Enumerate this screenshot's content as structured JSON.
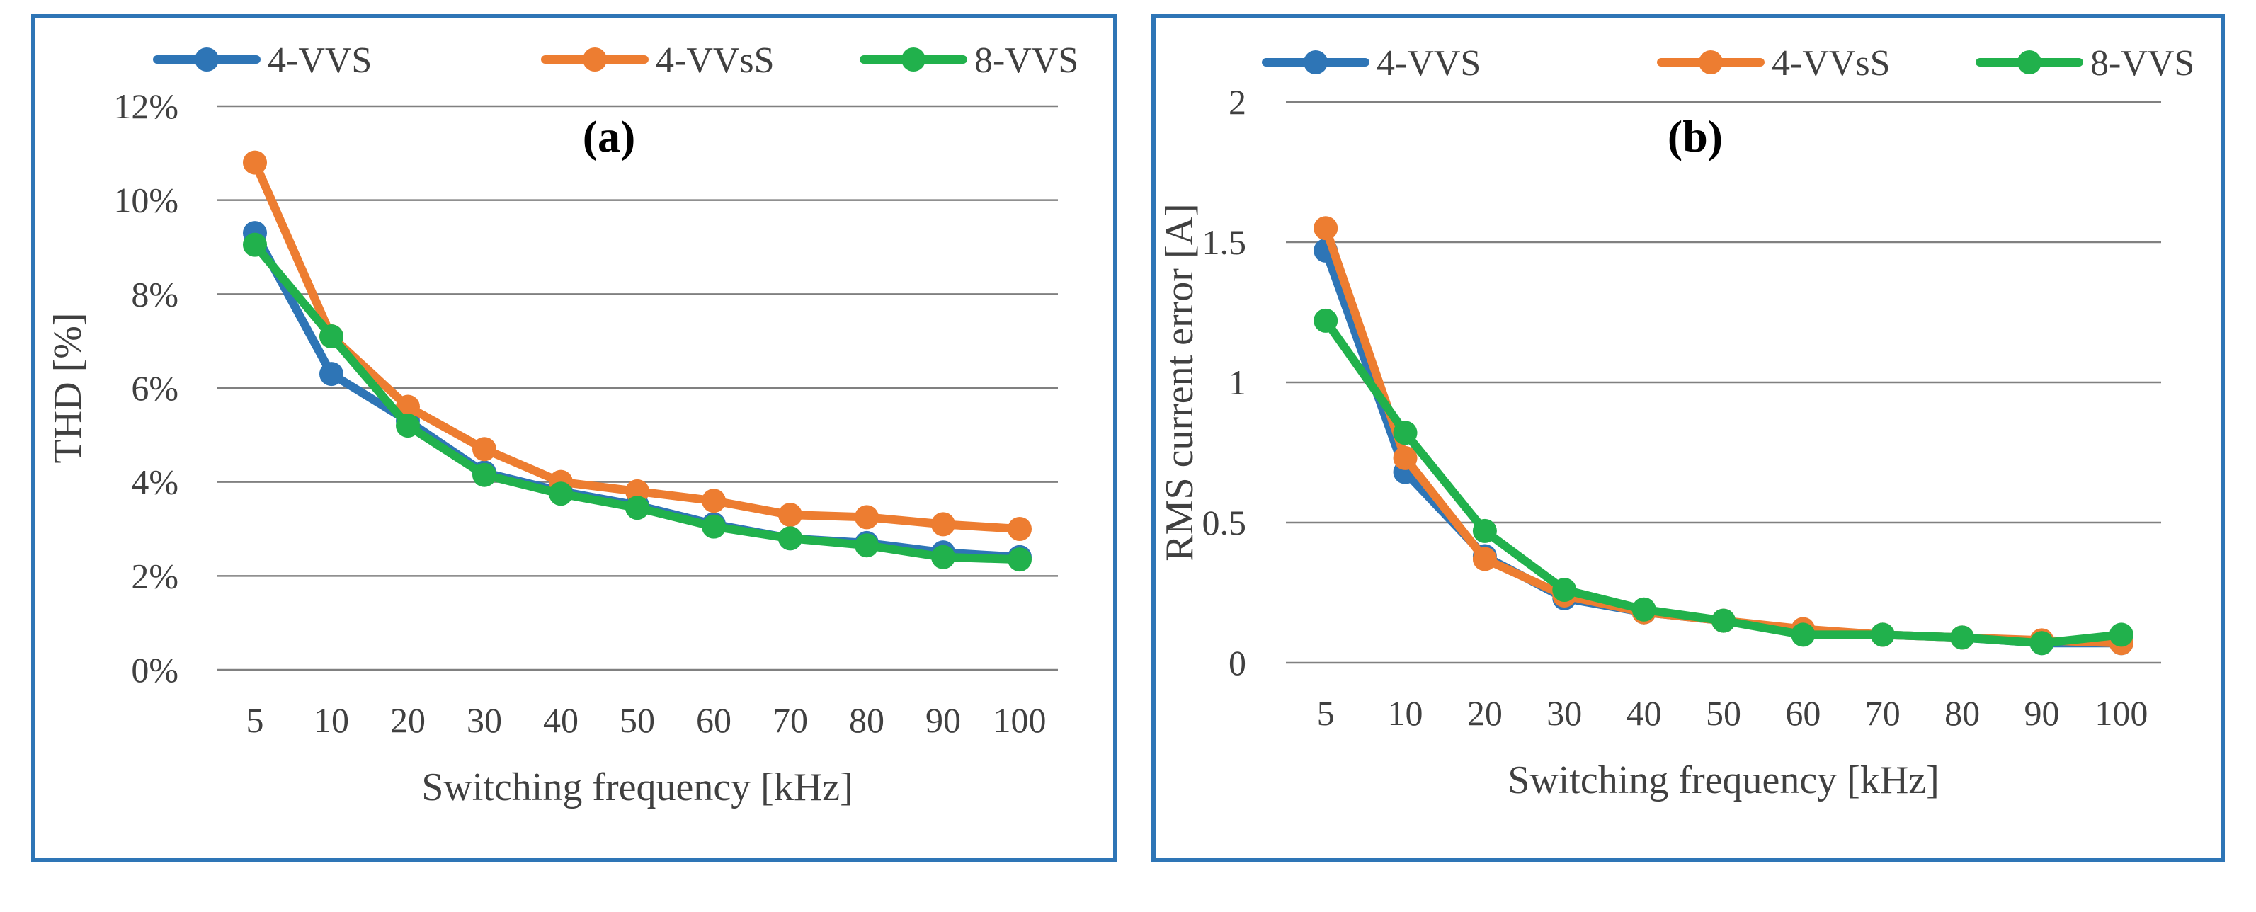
{
  "colors": {
    "border": "#2e75b6",
    "grid": "#808080",
    "series": [
      "#2e75b6",
      "#ed7d31",
      "#21b14c"
    ]
  },
  "chart_data": [
    {
      "type": "line",
      "panel_label": "(a)",
      "categories": [
        "5",
        "10",
        "20",
        "30",
        "40",
        "50",
        "60",
        "70",
        "80",
        "90",
        "100"
      ],
      "series": [
        {
          "name": "4-VVS",
          "values": [
            9.3,
            6.3,
            5.3,
            4.2,
            3.8,
            3.5,
            3.1,
            2.8,
            2.7,
            2.5,
            2.4
          ]
        },
        {
          "name": "4-VVsS",
          "values": [
            10.8,
            7.1,
            5.6,
            4.7,
            4.0,
            3.8,
            3.6,
            3.3,
            3.25,
            3.1,
            3.0
          ]
        },
        {
          "name": "8-VVS",
          "values": [
            9.05,
            7.1,
            5.2,
            4.15,
            3.75,
            3.45,
            3.05,
            2.8,
            2.65,
            2.4,
            2.35
          ]
        }
      ],
      "xlabel": "Switching frequency [kHz]",
      "ylabel": "THD [%]",
      "ylim": [
        0,
        12
      ],
      "yticks": [
        0,
        2,
        4,
        6,
        8,
        10,
        12
      ],
      "ytick_labels": [
        "0%",
        "2%",
        "4%",
        "6%",
        "8%",
        "10%",
        "12%"
      ],
      "legend_position": "top",
      "grid": true
    },
    {
      "type": "line",
      "panel_label": "(b)",
      "categories": [
        "5",
        "10",
        "20",
        "30",
        "40",
        "50",
        "60",
        "70",
        "80",
        "90",
        "100"
      ],
      "series": [
        {
          "name": "4-VVS",
          "values": [
            1.47,
            0.68,
            0.38,
            0.23,
            0.18,
            0.15,
            0.11,
            0.1,
            0.09,
            0.07,
            0.07
          ]
        },
        {
          "name": "4-VVsS",
          "values": [
            1.55,
            0.73,
            0.37,
            0.24,
            0.18,
            0.15,
            0.12,
            0.1,
            0.09,
            0.08,
            0.07
          ]
        },
        {
          "name": "8-VVS",
          "values": [
            1.22,
            0.82,
            0.47,
            0.26,
            0.19,
            0.15,
            0.1,
            0.1,
            0.09,
            0.07,
            0.1
          ]
        }
      ],
      "xlabel": "Switching frequency [kHz]",
      "ylabel": "RMS current error [A]",
      "ylim": [
        0,
        2
      ],
      "yticks": [
        0,
        0.5,
        1,
        1.5,
        2
      ],
      "ytick_labels": [
        "0",
        "0.5",
        "1",
        "1.5",
        "2"
      ],
      "legend_position": "top",
      "grid": true
    }
  ]
}
